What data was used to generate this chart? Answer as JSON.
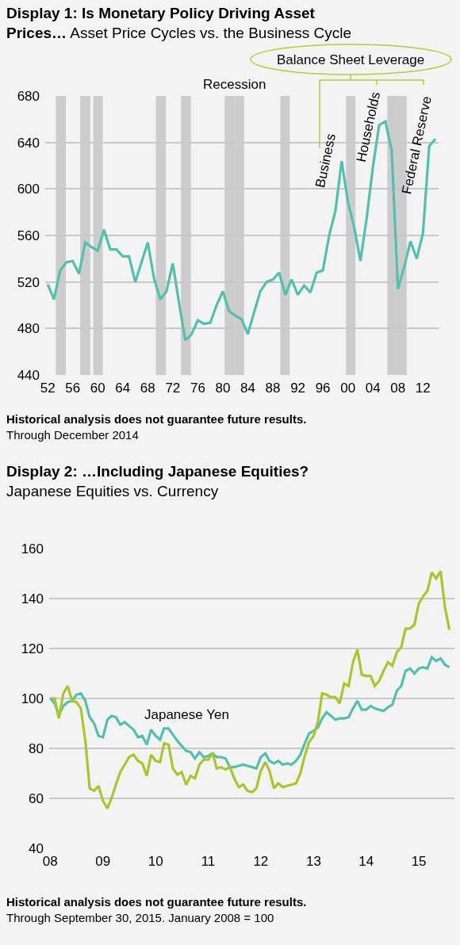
{
  "chart_data": [
    {
      "type": "line",
      "title": "Display 1: Is Monetary Policy Driving Asset Prices…",
      "subtitle": "Asset Price Cycles vs. the Business Cycle",
      "x": [
        1952,
        1953,
        1954,
        1955,
        1956,
        1957,
        1958,
        1959,
        1960,
        1961,
        1962,
        1963,
        1964,
        1965,
        1966,
        1967,
        1968,
        1969,
        1970,
        1971,
        1972,
        1973,
        1974,
        1975,
        1976,
        1977,
        1978,
        1979,
        1980,
        1981,
        1982,
        1983,
        1984,
        1985,
        1986,
        1987,
        1988,
        1989,
        1990,
        1991,
        1992,
        1993,
        1994,
        1995,
        1996,
        1997,
        1998,
        1999,
        2000,
        2001,
        2002,
        2003,
        2004,
        2005,
        2006,
        2007,
        2008,
        2009,
        2010,
        2011,
        2012,
        2013,
        2014
      ],
      "series": [
        {
          "color": "#52c1ac",
          "values": [
            518,
            505,
            530,
            537,
            538,
            527,
            554,
            550,
            547,
            565,
            548,
            548,
            542,
            542,
            520,
            537,
            554,
            523,
            505,
            512,
            536,
            502,
            470,
            475,
            487,
            484,
            485,
            500,
            512,
            495,
            491,
            488,
            475,
            494,
            512,
            520,
            522,
            528,
            509,
            522,
            509,
            517,
            511,
            528,
            530,
            560,
            581,
            624,
            589,
            567,
            538,
            575,
            619,
            655,
            658,
            633,
            514,
            533,
            555,
            540,
            562,
            637,
            643
          ]
        }
      ],
      "xlim": [
        1951.6,
        2014.5
      ],
      "xticks": [
        {
          "value": 1952,
          "label": "52"
        },
        {
          "value": 1956,
          "label": "56"
        },
        {
          "value": 1960,
          "label": "60"
        },
        {
          "value": 1964,
          "label": "64"
        },
        {
          "value": 1968,
          "label": "68"
        },
        {
          "value": 1972,
          "label": "72"
        },
        {
          "value": 1976,
          "label": "76"
        },
        {
          "value": 1980,
          "label": "80"
        },
        {
          "value": 1984,
          "label": "84"
        },
        {
          "value": 1988,
          "label": "88"
        },
        {
          "value": 1992,
          "label": "92"
        },
        {
          "value": 1996,
          "label": "96"
        },
        {
          "value": 2000,
          "label": "00"
        },
        {
          "value": 2004,
          "label": "04"
        },
        {
          "value": 2008,
          "label": "08"
        },
        {
          "value": 2012,
          "label": "12"
        }
      ],
      "ylim": [
        440,
        680
      ],
      "yticks": [
        440,
        480,
        520,
        560,
        600,
        640,
        680
      ],
      "grid": "y",
      "bands": [
        {
          "axis": "x",
          "from": 1953.3,
          "to": 1954.9,
          "color": "#cccccc"
        },
        {
          "axis": "x",
          "from": 1957.2,
          "to": 1958.8,
          "color": "#cccccc"
        },
        {
          "axis": "x",
          "from": 1959.3,
          "to": 1960.8,
          "color": "#cccccc"
        },
        {
          "axis": "x",
          "from": 1969.3,
          "to": 1970.9,
          "color": "#cccccc"
        },
        {
          "axis": "x",
          "from": 1973.3,
          "to": 1974.9,
          "color": "#cccccc"
        },
        {
          "axis": "x",
          "from": 1980.3,
          "to": 1981.8,
          "color": "#cccccc"
        },
        {
          "axis": "x",
          "from": 1981.8,
          "to": 1983.4,
          "color": "#cccccc"
        },
        {
          "axis": "x",
          "from": 1989.2,
          "to": 1990.7,
          "color": "#cccccc"
        },
        {
          "axis": "x",
          "from": 1999.7,
          "to": 2001.2,
          "color": "#cccccc"
        },
        {
          "axis": "x",
          "from": 2006.3,
          "to": 2007.9,
          "color": "#cccccc"
        },
        {
          "axis": "x",
          "from": 2007.9,
          "to": 2009.4,
          "color": "#cccccc"
        }
      ],
      "annotations": [
        "Recession",
        "Balance Sheet Leverage",
        "Business",
        "Households",
        "Federal Reserve",
        "Historical analysis does not guarantee future results.",
        "Through December 2014"
      ]
    },
    {
      "type": "line",
      "title": "Display 2: …Including Japanese Equities?",
      "subtitle": "Japanese Equities vs. Currency",
      "x": [
        "2008-01",
        "2008-02",
        "2008-03",
        "2008-04",
        "2008-05",
        "2008-06",
        "2008-07",
        "2008-08",
        "2008-09",
        "2008-10",
        "2008-11",
        "2008-12",
        "2009-01",
        "2009-02",
        "2009-03",
        "2009-04",
        "2009-05",
        "2009-06",
        "2009-07",
        "2009-08",
        "2009-09",
        "2009-10",
        "2009-11",
        "2009-12",
        "2010-01",
        "2010-02",
        "2010-03",
        "2010-04",
        "2010-05",
        "2010-06",
        "2010-07",
        "2010-08",
        "2010-09",
        "2010-10",
        "2010-11",
        "2010-12",
        "2011-01",
        "2011-02",
        "2011-03",
        "2011-04",
        "2011-05",
        "2011-06",
        "2011-07",
        "2011-08",
        "2011-09",
        "2011-10",
        "2011-11",
        "2011-12",
        "2012-01",
        "2012-02",
        "2012-03",
        "2012-04",
        "2012-05",
        "2012-06",
        "2012-07",
        "2012-08",
        "2012-09",
        "2012-10",
        "2012-11",
        "2012-12",
        "2013-01",
        "2013-02",
        "2013-03",
        "2013-04",
        "2013-05",
        "2013-06",
        "2013-07",
        "2013-08",
        "2013-09",
        "2013-10",
        "2013-11",
        "2013-12",
        "2014-01",
        "2014-02",
        "2014-03",
        "2014-04",
        "2014-05",
        "2014-06",
        "2014-07",
        "2014-08",
        "2014-09",
        "2014-10",
        "2014-11",
        "2014-12",
        "2015-01",
        "2015-02",
        "2015-03",
        "2015-04",
        "2015-05",
        "2015-06",
        "2015-07",
        "2015-08"
      ],
      "series": [
        {
          "name": "Japanese Yen",
          "color": "#52c1ac",
          "values": [
            100,
            98,
            93.5,
            97,
            98.5,
            99,
            101.5,
            102,
            99,
            92.5,
            90,
            85,
            84.5,
            91.5,
            93,
            92.5,
            89.5,
            90.5,
            89,
            87.5,
            84.5,
            85,
            81.5,
            87.5,
            85,
            83.5,
            88,
            88,
            85.5,
            83,
            81,
            79,
            78.5,
            76,
            78.5,
            76.5,
            77,
            78,
            76.5,
            76.5,
            76,
            72.5,
            72.5,
            73,
            73.5,
            73,
            72.5,
            72,
            76.5,
            78,
            75,
            74,
            75,
            73.5,
            74,
            73.5,
            75,
            77.5,
            82,
            86,
            87,
            88.5,
            92,
            94.5,
            93,
            91.5,
            92,
            92,
            92.5,
            96,
            99,
            95.5,
            95.5,
            97,
            96,
            95.5,
            95,
            96.5,
            97.5,
            103,
            105,
            111,
            112,
            110,
            112,
            112.5,
            112,
            116.5,
            115,
            116,
            113.5,
            112.5
          ]
        },
        {
          "color": "#aac62c",
          "values": [
            100,
            100,
            92,
            102,
            105,
            99,
            98.5,
            96,
            83,
            64,
            63,
            65,
            59,
            56,
            60,
            65.5,
            70.5,
            73.5,
            76.5,
            77.5,
            75,
            74,
            69,
            77.5,
            75,
            74.5,
            82,
            81.5,
            72,
            69.5,
            70.5,
            65.5,
            69,
            68,
            73.5,
            75.5,
            75.5,
            78,
            72,
            72.5,
            71.5,
            72.5,
            68,
            64.5,
            65.5,
            63,
            62.5,
            64,
            71,
            74.5,
            71,
            64,
            66,
            64.5,
            65,
            65.5,
            66,
            70,
            77,
            82.5,
            85,
            91,
            102,
            101.5,
            100.5,
            100.5,
            98,
            106,
            105,
            114.5,
            119.5,
            109.5,
            109,
            109,
            105,
            107,
            111,
            114.5,
            113,
            118.5,
            120.5,
            128,
            128,
            129.5,
            138,
            141,
            143,
            150.5,
            148,
            151,
            136.5,
            127.5
          ]
        }
      ],
      "xlim": [
        "2007-12-25",
        "2015-09-05"
      ],
      "xticks": [
        {
          "value": "2008-01",
          "label": "08"
        },
        {
          "value": "2009-01",
          "label": "09"
        },
        {
          "value": "2010-01",
          "label": "10"
        },
        {
          "value": "2011-01",
          "label": "11"
        },
        {
          "value": "2012-01",
          "label": "12"
        },
        {
          "value": "2013-01",
          "label": "13"
        },
        {
          "value": "2014-01",
          "label": "14"
        },
        {
          "value": "2015-01",
          "label": "15"
        }
      ],
      "ylim": [
        40,
        160
      ],
      "yticks": [
        40,
        60,
        80,
        100,
        120,
        140,
        160
      ],
      "grid": "y",
      "annotations": [
        "Historical analysis does not guarantee future results.",
        "Through September 30, 2015. January 2008 = 100"
      ]
    }
  ]
}
